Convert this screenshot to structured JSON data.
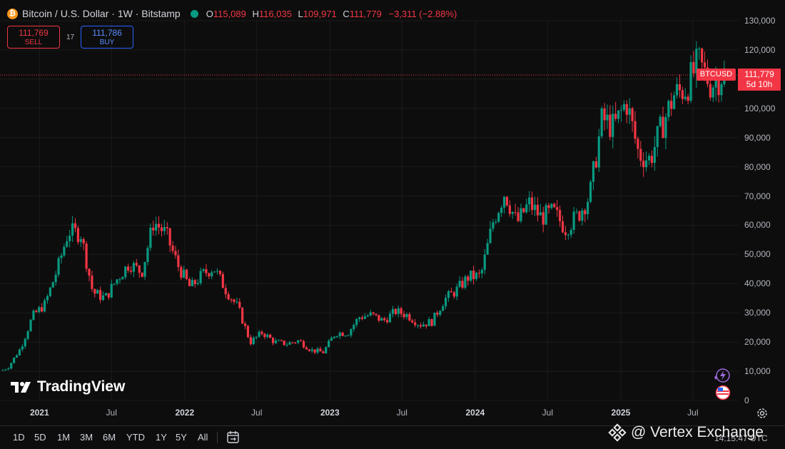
{
  "header": {
    "symbol_title": "Bitcoin / U.S. Dollar · 1W · Bitstamp",
    "coin_icon": "bitcoin-icon",
    "o_label": "O",
    "o_value": "115,089",
    "h_label": "H",
    "h_value": "116,035",
    "l_label": "L",
    "l_value": "109,971",
    "c_label": "C",
    "c_value": "111,779",
    "change": "−3,311 (−2.88%)"
  },
  "trade": {
    "sell_price": "111,769",
    "sell_label": "SELL",
    "spread": "17",
    "buy_price": "111,786",
    "buy_label": "BUY"
  },
  "price_tag": {
    "symbol": "BTCUSD",
    "price": "111,779",
    "countdown": "5d 10h"
  },
  "brand": {
    "name": "TradingView"
  },
  "watermark": {
    "text": "@ Vertex Exchange"
  },
  "clock": "14:15:47 UTC",
  "ranges": [
    "1D",
    "5D",
    "1M",
    "3M",
    "6M",
    "YTD",
    "1Y",
    "5Y",
    "All"
  ],
  "colors": {
    "up": "#089981",
    "down": "#f23645",
    "background": "#0d0d0d"
  },
  "chart_data": {
    "type": "candlestick",
    "x_tick_labels": [
      "2021",
      "Jul",
      "2022",
      "Jul",
      "2023",
      "Jul",
      "2024",
      "Jul",
      "2025",
      "Jul"
    ],
    "y_tick_labels": [
      "130,000",
      "120,000",
      "110,000",
      "100,000",
      "90,000",
      "80,000",
      "70,000",
      "60,000",
      "50,000",
      "40,000",
      "30,000",
      "20,000",
      "10,000",
      "0"
    ],
    "ylim": [
      0,
      130000
    ],
    "last_price": 111779,
    "series": [
      {
        "date": "2020-10",
        "close": 11500
      },
      {
        "date": "2020-11",
        "close": 18000
      },
      {
        "date": "2020-12",
        "close": 28900
      },
      {
        "date": "2021-01",
        "close": 33000
      },
      {
        "date": "2021-02",
        "close": 45000
      },
      {
        "date": "2021-03",
        "close": 58000
      },
      {
        "date": "2021-04",
        "close": 57000
      },
      {
        "date": "2021-05",
        "close": 37000
      },
      {
        "date": "2021-06",
        "close": 35000
      },
      {
        "date": "2021-07",
        "close": 41500
      },
      {
        "date": "2021-08",
        "close": 47000
      },
      {
        "date": "2021-09",
        "close": 43800
      },
      {
        "date": "2021-10",
        "close": 61300
      },
      {
        "date": "2021-11",
        "close": 57000
      },
      {
        "date": "2021-12",
        "close": 46200
      },
      {
        "date": "2022-01",
        "close": 38500
      },
      {
        "date": "2022-02",
        "close": 43200
      },
      {
        "date": "2022-03",
        "close": 45500
      },
      {
        "date": "2022-04",
        "close": 37700
      },
      {
        "date": "2022-05",
        "close": 31800
      },
      {
        "date": "2022-06",
        "close": 19900
      },
      {
        "date": "2022-07",
        "close": 23300
      },
      {
        "date": "2022-08",
        "close": 20000
      },
      {
        "date": "2022-09",
        "close": 19400
      },
      {
        "date": "2022-10",
        "close": 20500
      },
      {
        "date": "2022-11",
        "close": 17200
      },
      {
        "date": "2022-12",
        "close": 16500
      },
      {
        "date": "2023-01",
        "close": 23100
      },
      {
        "date": "2023-02",
        "close": 23100
      },
      {
        "date": "2023-03",
        "close": 28500
      },
      {
        "date": "2023-04",
        "close": 29300
      },
      {
        "date": "2023-05",
        "close": 27200
      },
      {
        "date": "2023-06",
        "close": 30500
      },
      {
        "date": "2023-07",
        "close": 29200
      },
      {
        "date": "2023-08",
        "close": 26000
      },
      {
        "date": "2023-09",
        "close": 27000
      },
      {
        "date": "2023-10",
        "close": 34500
      },
      {
        "date": "2023-11",
        "close": 37700
      },
      {
        "date": "2023-12",
        "close": 42300
      },
      {
        "date": "2024-01",
        "close": 42600
      },
      {
        "date": "2024-02",
        "close": 61200
      },
      {
        "date": "2024-03",
        "close": 71300
      },
      {
        "date": "2024-04",
        "close": 60700
      },
      {
        "date": "2024-05",
        "close": 67500
      },
      {
        "date": "2024-06",
        "close": 62700
      },
      {
        "date": "2024-07",
        "close": 64600
      },
      {
        "date": "2024-08",
        "close": 59000
      },
      {
        "date": "2024-09",
        "close": 63300
      },
      {
        "date": "2024-10",
        "close": 70200
      },
      {
        "date": "2024-11",
        "close": 96400
      },
      {
        "date": "2024-12",
        "close": 93400
      },
      {
        "date": "2025-01",
        "close": 102400
      },
      {
        "date": "2025-02",
        "close": 84300
      },
      {
        "date": "2025-03",
        "close": 82500
      },
      {
        "date": "2025-04",
        "close": 94200
      },
      {
        "date": "2025-05",
        "close": 104600
      },
      {
        "date": "2025-06",
        "close": 107100
      },
      {
        "date": "2025-07",
        "close": 115700
      },
      {
        "date": "2025-08",
        "close": 108200
      },
      {
        "date": "2025-09",
        "close": 111779
      }
    ]
  }
}
